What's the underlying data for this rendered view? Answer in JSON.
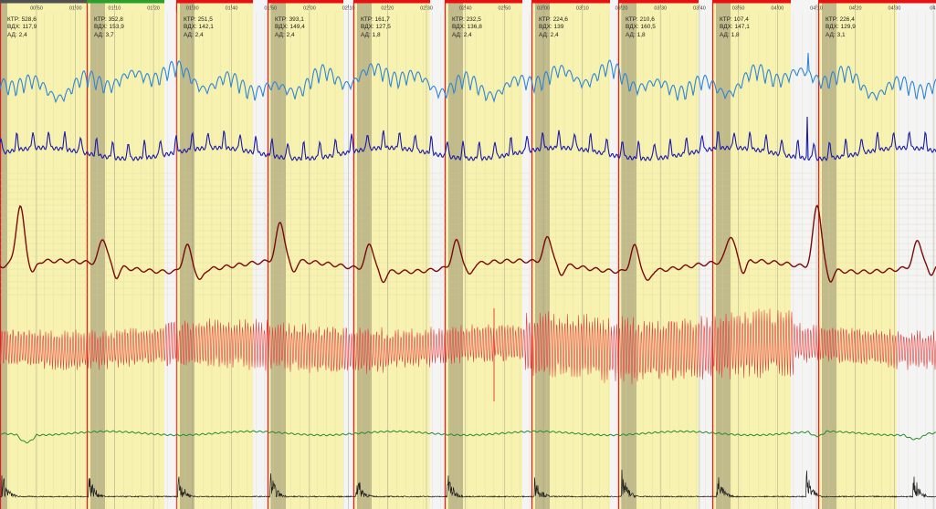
{
  "timeline": {
    "labels": [
      "00:50",
      "01:00",
      "01:10",
      "01:20",
      "01:30",
      "01:40",
      "01:50",
      "02:00",
      "02:10",
      "02:20",
      "02:30",
      "02:40",
      "02:50",
      "03:00",
      "03:10",
      "03:20",
      "03:30",
      "03:40",
      "03:50",
      "04:00",
      "04:10",
      "04:20",
      "04:30",
      "04:"
    ]
  },
  "metric_labels": {
    "ktr": "КТР:",
    "vdkh": "ВДХ:",
    "ad": "АД:"
  },
  "epochs": [
    {
      "ktr": "528,6",
      "vdkh": "117,9",
      "ad": "2,4"
    },
    {
      "ktr": "352,8",
      "vdkh": "153,9",
      "ad": "3,7"
    },
    {
      "ktr": "251,5",
      "vdkh": "142,1",
      "ad": "2,4"
    },
    {
      "ktr": "393,1",
      "vdkh": "149,4",
      "ad": "2,4"
    },
    {
      "ktr": "161,7",
      "vdkh": "127,5",
      "ad": "1,8"
    },
    {
      "ktr": "232,5",
      "vdkh": "136,8",
      "ad": "2,4"
    },
    {
      "ktr": "224,6",
      "vdkh": "139",
      "ad": "2,4"
    },
    {
      "ktr": "210,6",
      "vdkh": "160,5",
      "ad": "1,8"
    },
    {
      "ktr": "107,4",
      "vdkh": "147,1",
      "ad": "1,8"
    },
    {
      "ktr": "226,4",
      "vdkh": "129,9",
      "ad": "3,1"
    }
  ],
  "colors": {
    "epoch_fill": "#f7f2b0",
    "marker_fill": "#b7b084",
    "epoch_border": "#e02020",
    "trace_flow": "#2d86d6",
    "trace_effort": "#1a1aa8",
    "trace_pressure": "#7a0a0a",
    "trace_ecg": "#e84040",
    "trace_spo2": "#2a8a2a",
    "trace_snore": "#202020",
    "status_red": "#e81010",
    "status_green": "#2aa02a",
    "status_dark": "#505050"
  }
}
